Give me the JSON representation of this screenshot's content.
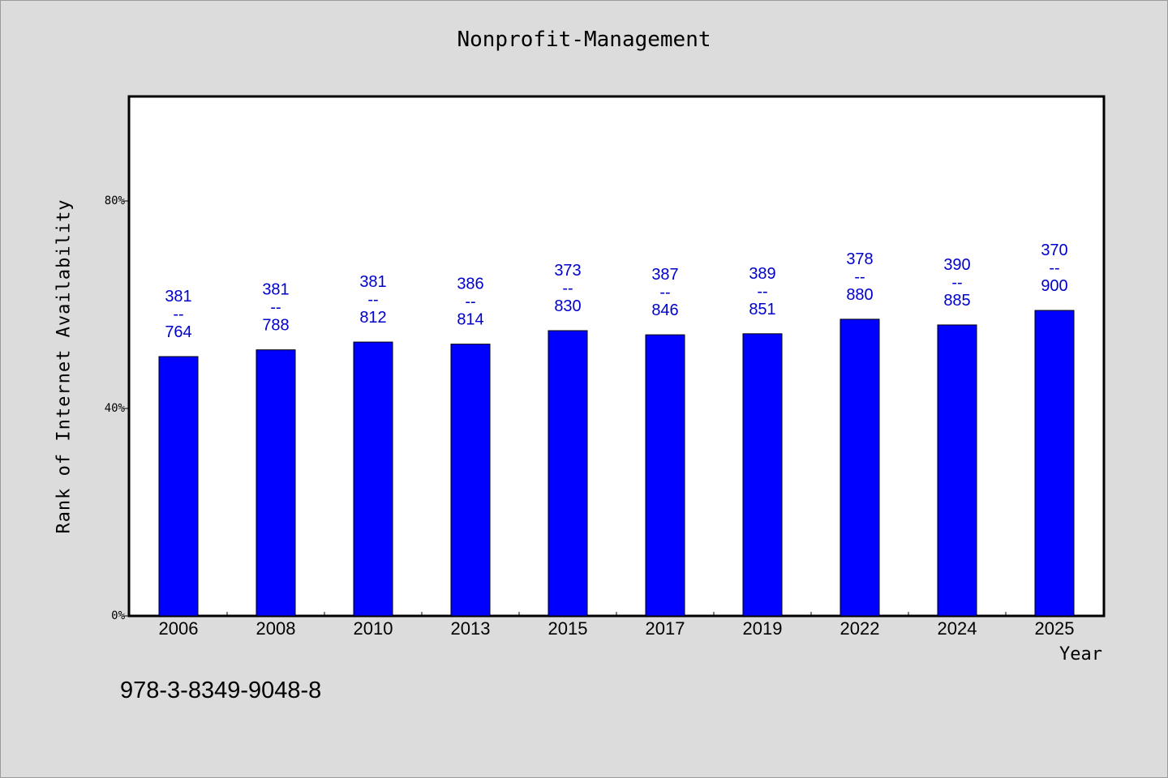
{
  "chart_data": {
    "type": "bar",
    "title": "Nonprofit-Management",
    "xlabel": "Year",
    "ylabel": "Rank of Internet Availability",
    "ylim": [
      0,
      100
    ],
    "yticks": [
      {
        "value": 0,
        "label": "0%"
      },
      {
        "value": 40,
        "label": "40%"
      },
      {
        "value": 80,
        "label": "80%"
      }
    ],
    "categories": [
      "2006",
      "2008",
      "2010",
      "2013",
      "2015",
      "2017",
      "2019",
      "2022",
      "2024",
      "2025"
    ],
    "values": [
      50,
      51.3,
      52.8,
      52.4,
      55,
      54.2,
      54.4,
      57.2,
      56.1,
      58.9
    ],
    "data_labels": [
      [
        "381",
        "--",
        "764"
      ],
      [
        "381",
        "--",
        "788"
      ],
      [
        "381",
        "--",
        "812"
      ],
      [
        "386",
        "--",
        "814"
      ],
      [
        "373",
        "--",
        "830"
      ],
      [
        "387",
        "--",
        "846"
      ],
      [
        "389",
        "--",
        "851"
      ],
      [
        "378",
        "--",
        "880"
      ],
      [
        "390",
        "--",
        "885"
      ],
      [
        "370",
        "--",
        "900"
      ]
    ],
    "grid": false,
    "bar_color": "#0000ff",
    "label_color": "#0000cc"
  },
  "footer": {
    "code": "978-3-8349-9048-8"
  }
}
